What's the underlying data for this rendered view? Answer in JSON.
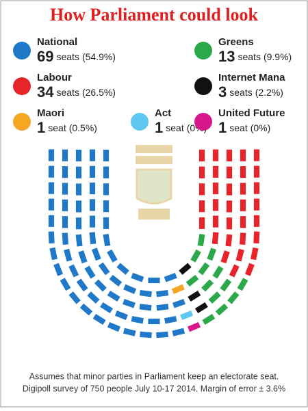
{
  "chart_data": {
    "type": "parliament",
    "title": "How Parliament could look",
    "parties": [
      {
        "name": "National",
        "seats": 69,
        "unit": "seats",
        "share": "(54.9%)",
        "color": "#1f78c8"
      },
      {
        "name": "Labour",
        "seats": 34,
        "unit": "seats",
        "share": "(26.5%)",
        "color": "#e8242b"
      },
      {
        "name": "Maori",
        "seats": 1,
        "unit": "seat",
        "share": "(0.5%)",
        "color": "#f5a623"
      },
      {
        "name": "Act",
        "seats": 1,
        "unit": "seat",
        "share": "(0%)",
        "color": "#5ec8f0"
      },
      {
        "name": "Greens",
        "seats": 13,
        "unit": "seats",
        "share": "(9.9%)",
        "color": "#2aa84a"
      },
      {
        "name": "Internet Mana",
        "seats": 3,
        "unit": "seats",
        "share": "(2.2%)",
        "color": "#111111"
      },
      {
        "name": "United Future",
        "seats": 1,
        "unit": "seat",
        "share": "(0%)",
        "color": "#d6188c"
      }
    ],
    "seat_order": [
      0,
      2,
      3,
      6,
      5,
      4,
      1
    ],
    "footnote": [
      "Assumes that minor parties in Parliament keep an electorate seat.",
      "Digipoll survey of 750 people July 10-17 2014. Margin of error ± 3.6%"
    ]
  }
}
